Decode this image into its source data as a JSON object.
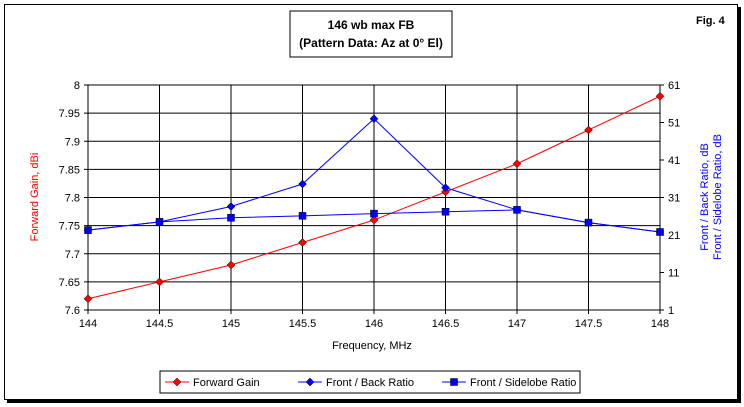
{
  "chart_data": {
    "type": "line",
    "title": "146 wb max FB",
    "subtitle": "(Pattern Data: Az at 0° El)",
    "figure_label": "Fig. 4",
    "xlabel": "Frequency, MHz",
    "ylabel": "Forward Gain, dBi",
    "y2label_lines": [
      "Front / Back Ratio,  dB",
      "Front / Sidelobe Ratio,  dB"
    ],
    "x": [
      144,
      144.5,
      145,
      145.5,
      146,
      146.5,
      147,
      147.5,
      148
    ],
    "x_ticks": [
      "144",
      "144.5",
      "145",
      "145.5",
      "146",
      "146.5",
      "147",
      "147.5",
      "148"
    ],
    "xlim": [
      144,
      148
    ],
    "ylim": [
      7.6,
      8
    ],
    "y_ticks": [
      "7.6",
      "7.65",
      "7.7",
      "7.75",
      "7.8",
      "7.85",
      "7.9",
      "7.95",
      "8"
    ],
    "y2lim": [
      1,
      61
    ],
    "y2_ticks": [
      "1",
      "11",
      "21",
      "31",
      "41",
      "51",
      "61"
    ],
    "grid": true,
    "legend_position": "bottom",
    "series": [
      {
        "name": "Forward Gain",
        "axis": "left",
        "color": "#ff0000",
        "marker": "diamond",
        "values": [
          7.62,
          7.65,
          7.68,
          7.72,
          7.76,
          7.81,
          7.86,
          7.92,
          7.98
        ]
      },
      {
        "name": "Front / Back Ratio",
        "axis": "right",
        "color": "#0000ff",
        "marker": "diamond",
        "values": [
          22.3,
          24.5,
          28.6,
          34.6,
          52,
          33.6,
          27.7,
          24.3,
          21.8
        ]
      },
      {
        "name": "Front / Sidelobe Ratio",
        "axis": "right",
        "color": "#0000ff",
        "marker": "square",
        "values": [
          22.3,
          24.5,
          25.6,
          26.1,
          26.7,
          27.2,
          27.7,
          24.3,
          21.8
        ]
      }
    ]
  }
}
